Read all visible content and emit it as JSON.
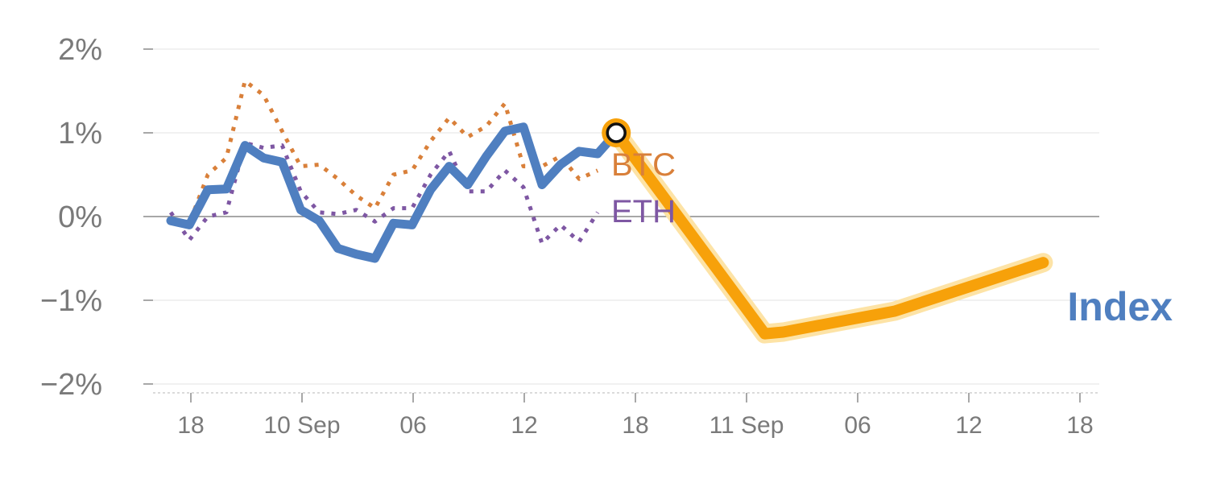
{
  "chart_data": {
    "type": "line",
    "y_unit": "%",
    "ylim": [
      -2,
      2
    ],
    "y_ticks": [
      2,
      1,
      0,
      -1,
      -2
    ],
    "y_tick_labels": [
      "2%",
      "1%",
      "0%",
      "−1%",
      "−2%"
    ],
    "x_tick_labels": [
      "18",
      "10 Sep",
      "06",
      "12",
      "18",
      "11 Sep",
      "06",
      "12",
      "18"
    ],
    "grid": true,
    "zero_line": true,
    "series": [
      {
        "name": "BTC",
        "color": "#d9803a",
        "style": "dotted",
        "values": [
          -0.02,
          -0.08,
          0.5,
          0.7,
          1.62,
          1.45,
          1.02,
          0.6,
          0.62,
          0.45,
          0.25,
          0.1,
          0.5,
          0.55,
          0.9,
          1.18,
          0.95,
          1.08,
          1.35,
          0.6,
          0.6,
          0.72,
          0.45,
          0.55
        ]
      },
      {
        "name": "ETH",
        "color": "#7e57a3",
        "style": "dotted",
        "values": [
          0.05,
          -0.28,
          0.0,
          0.05,
          0.88,
          0.82,
          0.85,
          0.3,
          0.05,
          0.03,
          0.08,
          -0.06,
          0.1,
          0.1,
          0.5,
          0.78,
          0.3,
          0.3,
          0.55,
          0.35,
          -0.32,
          -0.1,
          -0.3,
          0.05
        ]
      },
      {
        "name": "Index",
        "color": "#4f7fc0",
        "style": "solid",
        "values": [
          -0.05,
          -0.1,
          0.32,
          0.33,
          0.85,
          0.7,
          0.65,
          0.08,
          -0.05,
          -0.38,
          -0.45,
          -0.5,
          -0.08,
          -0.1,
          0.32,
          0.6,
          0.38,
          0.72,
          1.02,
          1.07,
          0.38,
          0.62,
          0.78,
          0.75,
          1.0
        ]
      },
      {
        "name": "Index (highlight)",
        "color": "#f7a10a",
        "style": "solid",
        "x_positions": [
          24,
          32,
          33,
          39,
          47
        ],
        "values": [
          1.0,
          -1.4,
          -1.38,
          -1.13,
          -0.55
        ]
      }
    ],
    "highlight_point": {
      "x_index": 24,
      "value": 1.0
    },
    "labels": {
      "btc": "BTC",
      "eth": "ETH",
      "index": "Index"
    }
  }
}
